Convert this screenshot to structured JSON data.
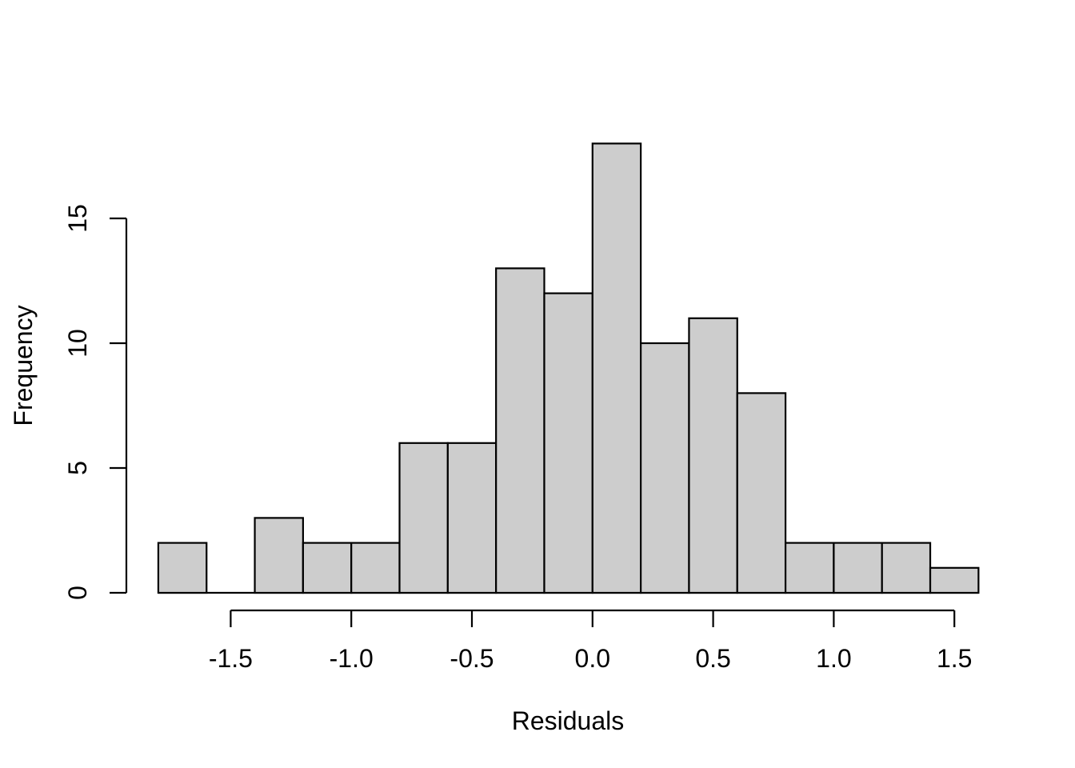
{
  "figure": {
    "background": "#ffffff"
  },
  "chart_data": {
    "type": "bar",
    "subtype": "histogram",
    "title": "",
    "xlabel": "Residuals",
    "ylabel": "Frequency",
    "bin_edges": [
      -1.8,
      -1.6,
      -1.4,
      -1.2,
      -1.0,
      -0.8,
      -0.6,
      -0.4,
      -0.2,
      0.0,
      0.2,
      0.4,
      0.6,
      0.8,
      1.0,
      1.2,
      1.4,
      1.6
    ],
    "counts": [
      2,
      0,
      3,
      2,
      2,
      6,
      6,
      13,
      12,
      18,
      10,
      11,
      8,
      2,
      2,
      2,
      1
    ],
    "x_ticks": {
      "values": [
        -1.5,
        -1.0,
        -0.5,
        0.0,
        0.5,
        1.0,
        1.5
      ],
      "labels": [
        "-1.5",
        "-1.0",
        "-0.5",
        "0.0",
        "0.5",
        "1.0",
        "1.5"
      ]
    },
    "y_ticks": {
      "values": [
        0,
        5,
        10,
        15
      ],
      "labels": [
        "0",
        "5",
        "10",
        "15"
      ]
    },
    "xlim": [
      -1.8,
      1.6
    ],
    "ylim": [
      0,
      18
    ],
    "grid": false,
    "legend": "none",
    "colors": {
      "bar_fill": "#cdcdcd",
      "bar_border": "#000000",
      "axis": "#000000",
      "text": "#000000"
    }
  }
}
